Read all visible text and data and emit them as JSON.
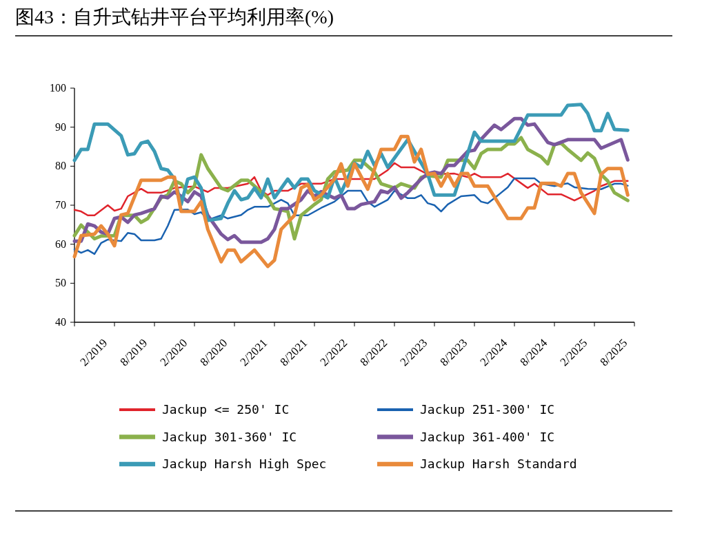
{
  "chart_data": {
    "type": "line",
    "title": "图43：自升式钻井平台平均利用率(%)",
    "xlim": [
      "2018-11",
      "2025-11"
    ],
    "xticks": [
      {
        "value": "2018-11",
        "label": null
      },
      {
        "value": "2019-02",
        "label": "2/2019"
      },
      {
        "value": "2019-05",
        "label": null
      },
      {
        "value": "2019-08",
        "label": "8/2019"
      },
      {
        "value": "2019-11",
        "label": null
      },
      {
        "value": "2020-02",
        "label": "2/2020"
      },
      {
        "value": "2020-05",
        "label": null
      },
      {
        "value": "2020-08",
        "label": "8/2020"
      },
      {
        "value": "2020-11",
        "label": null
      },
      {
        "value": "2021-02",
        "label": "2/2021"
      },
      {
        "value": "2021-05",
        "label": null
      },
      {
        "value": "2021-08",
        "label": "8/2021"
      },
      {
        "value": "2021-11",
        "label": null
      },
      {
        "value": "2022-02",
        "label": "2/2022"
      },
      {
        "value": "2022-05",
        "label": null
      },
      {
        "value": "2022-08",
        "label": "8/2022"
      },
      {
        "value": "2022-11",
        "label": null
      },
      {
        "value": "2023-02",
        "label": "2/2023"
      },
      {
        "value": "2023-05",
        "label": null
      },
      {
        "value": "2023-08",
        "label": "8/2023"
      },
      {
        "value": "2023-11",
        "label": null
      },
      {
        "value": "2024-02",
        "label": "2/2024"
      },
      {
        "value": "2024-05",
        "label": null
      },
      {
        "value": "2024-08",
        "label": "8/2024"
      },
      {
        "value": "2024-11",
        "label": null
      },
      {
        "value": "2025-02",
        "label": "2/2025"
      },
      {
        "value": "2025-05",
        "label": null
      },
      {
        "value": "2025-08",
        "label": "8/2025"
      },
      {
        "value": "2025-11",
        "label": null
      }
    ],
    "ylim": [
      40,
      100
    ],
    "yticks": [
      40,
      50,
      60,
      70,
      80,
      90,
      100
    ],
    "grid": false,
    "legend": "bottom",
    "series": [
      {
        "name": "Jackup <= 250' IC",
        "color": "#e0242c",
        "x": [
          "2018-11",
          "2018-12",
          "2019-01",
          "2019-02",
          "2019-04",
          "2019-05",
          "2019-06",
          "2019-07",
          "2019-09",
          "2019-10",
          "2019-12",
          "2020-02",
          "2020-03",
          "2020-05",
          "2020-07",
          "2020-08",
          "2020-10",
          "2021-01",
          "2021-02",
          "2021-03",
          "2021-04",
          "2021-05",
          "2021-07",
          "2021-09",
          "2021-12",
          "2022-02",
          "2022-08",
          "2022-10",
          "2022-11",
          "2022-12",
          "2023-02",
          "2023-04",
          "2023-08",
          "2023-10",
          "2023-11",
          "2023-12",
          "2024-03",
          "2024-04",
          "2024-07",
          "2024-08",
          "2024-10",
          "2024-12",
          "2025-02",
          "2025-05",
          "2025-06",
          "2025-08",
          "2025-09",
          "2025-10"
        ],
        "values": [
          68.8,
          68.4,
          67.4,
          67.4,
          70,
          68.6,
          69.1,
          72.3,
          74.2,
          73.2,
          73.2,
          74.4,
          74.6,
          74.8,
          73.4,
          74.4,
          74.4,
          75.5,
          77.2,
          73.7,
          72.6,
          73.7,
          73.7,
          75.5,
          75.5,
          76.7,
          76.7,
          79,
          80.8,
          79.7,
          79.7,
          77.9,
          78.1,
          77.2,
          78.1,
          77.2,
          77.2,
          78.1,
          74.4,
          75.5,
          72.8,
          72.8,
          71.2,
          73.7,
          74.9,
          76.2,
          76.2,
          76.2
        ]
      },
      {
        "name": "Jackup 251-300' IC",
        "color": "#1a62b0",
        "x": [
          "2018-11",
          "2018-12",
          "2019-01",
          "2019-02",
          "2019-03",
          "2019-04",
          "2019-06",
          "2019-07",
          "2019-08",
          "2019-09",
          "2019-11",
          "2019-12",
          "2020-01",
          "2020-02",
          "2020-04",
          "2020-05",
          "2020-06",
          "2020-07",
          "2020-09",
          "2020-10",
          "2020-12",
          "2021-01",
          "2021-02",
          "2021-04",
          "2021-06",
          "2021-07",
          "2021-08",
          "2021-10",
          "2021-12",
          "2022-02",
          "2022-04",
          "2022-06",
          "2022-07",
          "2022-08",
          "2022-10",
          "2022-11",
          "2023-01",
          "2023-02",
          "2023-03",
          "2023-04",
          "2023-05",
          "2023-06",
          "2023-07",
          "2023-09",
          "2023-11",
          "2023-12",
          "2024-01",
          "2024-02",
          "2024-03",
          "2024-04",
          "2024-05",
          "2024-08",
          "2024-09",
          "2024-11",
          "2024-12",
          "2025-01",
          "2025-02",
          "2025-04",
          "2025-06",
          "2025-08",
          "2025-09",
          "2025-10"
        ],
        "values": [
          58.7,
          57.8,
          58.5,
          57.5,
          60.3,
          61.2,
          60.8,
          62.9,
          62.6,
          61.0,
          61.0,
          61.4,
          64.7,
          68.8,
          68.9,
          67.7,
          68.2,
          66.2,
          67.4,
          66.6,
          67.5,
          68.8,
          69.6,
          69.6,
          71.4,
          70.5,
          67.4,
          67.4,
          69.3,
          70.9,
          73.7,
          73.7,
          70.9,
          69.6,
          71.4,
          73.7,
          71.8,
          71.8,
          72.6,
          70.5,
          70.0,
          68.4,
          70.2,
          72.3,
          72.6,
          70.9,
          70.5,
          71.8,
          73.2,
          74.6,
          76.9,
          76.9,
          75.5,
          74.9,
          75.3,
          75.6,
          74.6,
          74.2,
          74.1,
          75.5,
          75.5,
          75.0
        ]
      },
      {
        "name": "Jackup 301-360' IC",
        "color": "#8bb14c",
        "x": [
          "2018-11",
          "2018-12",
          "2019-01",
          "2019-02",
          "2019-03",
          "2019-05",
          "2019-06",
          "2019-08",
          "2019-09",
          "2019-10",
          "2019-12",
          "2020-01",
          "2020-02",
          "2020-03",
          "2020-04",
          "2020-05",
          "2020-06",
          "2020-07",
          "2020-09",
          "2020-10",
          "2020-12",
          "2021-01",
          "2021-02",
          "2021-04",
          "2021-05",
          "2021-06",
          "2021-07",
          "2021-08",
          "2021-09",
          "2021-11",
          "2021-12",
          "2022-01",
          "2022-02",
          "2022-04",
          "2022-05",
          "2022-06",
          "2022-08",
          "2022-09",
          "2022-11",
          "2022-12",
          "2023-02",
          "2023-03",
          "2023-04",
          "2023-06",
          "2023-07",
          "2023-10",
          "2023-11",
          "2023-12",
          "2024-01",
          "2024-03",
          "2024-04",
          "2024-05",
          "2024-06",
          "2024-07",
          "2024-09",
          "2024-10",
          "2024-11",
          "2024-12",
          "2025-01",
          "2025-03",
          "2025-04",
          "2025-05",
          "2025-06",
          "2025-07",
          "2025-08",
          "2025-10"
        ],
        "values": [
          62.2,
          64.9,
          63.1,
          61.4,
          62.1,
          62.2,
          67.4,
          67.4,
          65.6,
          66.6,
          71.9,
          72.6,
          76.2,
          75.5,
          73.2,
          74.9,
          82.9,
          79.4,
          74.4,
          73.7,
          76.4,
          76.4,
          74.9,
          71.9,
          69.1,
          68.8,
          68.4,
          61.4,
          67.4,
          70.2,
          71.4,
          76.7,
          78.5,
          79.0,
          81.5,
          81.5,
          78.5,
          75.5,
          74.4,
          75.5,
          74.4,
          77.1,
          77.6,
          77.2,
          81.5,
          81.5,
          79.4,
          83.2,
          84.3,
          84.3,
          85.7,
          85.7,
          87.3,
          84.3,
          82.4,
          80.6,
          85.5,
          85.9,
          84.3,
          81.5,
          83.4,
          82.0,
          77.9,
          76.2,
          73.2,
          71.2
        ]
      },
      {
        "name": "Jackup 361-400' IC",
        "color": "#7a579c",
        "x": [
          "2018-11",
          "2018-12",
          "2019-01",
          "2019-02",
          "2019-03",
          "2019-04",
          "2019-05",
          "2019-06",
          "2019-07",
          "2019-08",
          "2019-09",
          "2019-11",
          "2019-12",
          "2020-01",
          "2020-02",
          "2020-03",
          "2020-04",
          "2020-05",
          "2020-06",
          "2020-07",
          "2020-09",
          "2020-10",
          "2020-11",
          "2020-12",
          "2021-03",
          "2021-04",
          "2021-05",
          "2021-06",
          "2021-07",
          "2021-09",
          "2021-10",
          "2021-11",
          "2021-12",
          "2022-01",
          "2022-02",
          "2022-03",
          "2022-04",
          "2022-05",
          "2022-06",
          "2022-08",
          "2022-09",
          "2022-10",
          "2022-11",
          "2022-12",
          "2023-01",
          "2023-03",
          "2023-04",
          "2023-05",
          "2023-06",
          "2023-07",
          "2023-08",
          "2023-10",
          "2023-11",
          "2023-12",
          "2024-02",
          "2024-03",
          "2024-05",
          "2024-06",
          "2024-07",
          "2024-08",
          "2024-10",
          "2024-11",
          "2025-01",
          "2025-05",
          "2025-06",
          "2025-09",
          "2025-10"
        ],
        "values": [
          60.8,
          60.8,
          65.2,
          64.7,
          63.1,
          62.6,
          66.6,
          67.0,
          65.6,
          67.5,
          67.9,
          69.1,
          72.3,
          71.9,
          73.4,
          72.3,
          70.9,
          73.4,
          72.3,
          67.4,
          62.6,
          61.2,
          62.2,
          60.5,
          60.5,
          61.4,
          63.8,
          69.1,
          69.1,
          71.4,
          73.7,
          72.3,
          73.5,
          72.6,
          71.8,
          72.6,
          69.1,
          69.1,
          70.2,
          70.9,
          73.7,
          73.2,
          74.6,
          71.8,
          73.2,
          76.7,
          78.1,
          78.5,
          78.1,
          80.2,
          80.2,
          83.8,
          84.1,
          86.9,
          90.5,
          89.4,
          92.2,
          92.2,
          90.5,
          90.8,
          86.1,
          85.5,
          86.8,
          86.8,
          84.6,
          86.8,
          81.6
        ]
      },
      {
        "name": "Jackup Harsh High Spec",
        "color": "#3b9bb6",
        "x": [
          "2018-11",
          "2018-12",
          "2019-01",
          "2019-02",
          "2019-04",
          "2019-06",
          "2019-07",
          "2019-08",
          "2019-09",
          "2019-10",
          "2019-11",
          "2019-12",
          "2020-01",
          "2020-02",
          "2020-03",
          "2020-04",
          "2020-05",
          "2020-06",
          "2020-07",
          "2020-09",
          "2020-10",
          "2020-11",
          "2020-12",
          "2021-01",
          "2021-02",
          "2021-03",
          "2021-04",
          "2021-05",
          "2021-07",
          "2021-08",
          "2021-09",
          "2021-10",
          "2021-11",
          "2022-01",
          "2022-02",
          "2022-03",
          "2022-05",
          "2022-06",
          "2022-07",
          "2022-08",
          "2022-09",
          "2022-10",
          "2023-01",
          "2023-02",
          "2023-04",
          "2023-05",
          "2023-08",
          "2023-11",
          "2023-12",
          "2024-05",
          "2024-07",
          "2024-12",
          "2025-01",
          "2025-03",
          "2025-04",
          "2025-05",
          "2025-06",
          "2025-07",
          "2025-08",
          "2025-10"
        ],
        "values": [
          81.5,
          84.3,
          84.3,
          90.8,
          90.8,
          87.8,
          82.9,
          83.2,
          85.9,
          86.4,
          83.8,
          79.4,
          79,
          76.7,
          70.2,
          76.7,
          77.2,
          74.4,
          66.1,
          66.6,
          70.5,
          73.7,
          71.4,
          71.9,
          74.4,
          71.9,
          76.7,
          71.9,
          76.7,
          74.4,
          76.7,
          76.7,
          73.7,
          71.9,
          77.2,
          73.2,
          80.8,
          79.7,
          83.8,
          80.2,
          83.2,
          79.7,
          86.8,
          83.8,
          77.9,
          72.6,
          72.6,
          88.7,
          86.4,
          86.4,
          93.1,
          93.1,
          95.6,
          95.8,
          93.5,
          89.1,
          89.1,
          93.5,
          89.4,
          89.2
        ]
      },
      {
        "name": "Jackup Harsh Standard",
        "color": "#e98a3b",
        "x": [
          "2018-11",
          "2018-12",
          "2019-02",
          "2019-03",
          "2019-04",
          "2019-05",
          "2019-06",
          "2019-07",
          "2019-09",
          "2019-12",
          "2020-01",
          "2020-02",
          "2020-03",
          "2020-05",
          "2020-06",
          "2020-07",
          "2020-09",
          "2020-10",
          "2020-11",
          "2020-12",
          "2021-02",
          "2021-04",
          "2021-05",
          "2021-06",
          "2021-08",
          "2021-09",
          "2021-10",
          "2021-11",
          "2021-12",
          "2022-02",
          "2022-03",
          "2022-04",
          "2022-05",
          "2022-07",
          "2022-09",
          "2022-11",
          "2022-12",
          "2023-01",
          "2023-02",
          "2023-03",
          "2023-04",
          "2023-05",
          "2023-06",
          "2023-07",
          "2023-08",
          "2023-09",
          "2023-10",
          "2023-11",
          "2024-01",
          "2024-04",
          "2024-06",
          "2024-07",
          "2024-08",
          "2024-09",
          "2024-11",
          "2024-12",
          "2025-01",
          "2025-02",
          "2025-03",
          "2025-05",
          "2025-06",
          "2025-07",
          "2025-09",
          "2025-10"
        ],
        "values": [
          56.8,
          62.2,
          62.6,
          64.7,
          62.6,
          59.6,
          67.5,
          67.9,
          76.4,
          76.4,
          77.2,
          77.2,
          68.4,
          68.4,
          70.9,
          63.8,
          55.5,
          58.5,
          58.5,
          55.5,
          58.5,
          54.3,
          55.9,
          63.8,
          67.4,
          74.4,
          75.3,
          71.4,
          72.6,
          76.7,
          80.6,
          74.9,
          80.6,
          74.1,
          84.3,
          84.3,
          87.6,
          87.6,
          81.1,
          84.3,
          77.9,
          78.1,
          74.9,
          78.1,
          74.9,
          78.1,
          78.1,
          74.9,
          74.9,
          66.6,
          66.6,
          69.3,
          69.3,
          75.6,
          75.6,
          74.9,
          78.1,
          78.1,
          73.2,
          67.9,
          77.9,
          79.4,
          79.4,
          72.6
        ]
      }
    ]
  }
}
